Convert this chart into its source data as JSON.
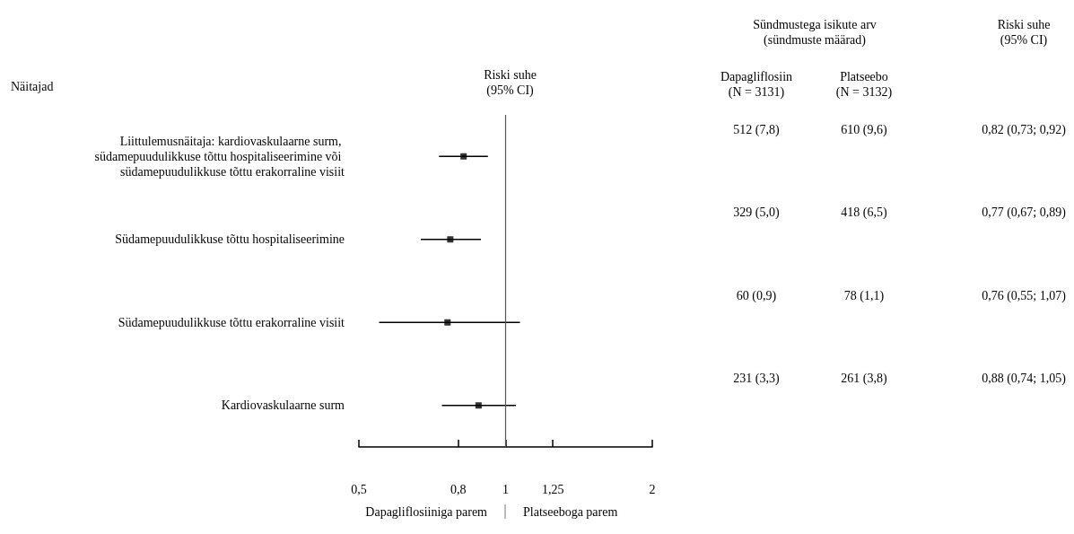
{
  "chart_data": {
    "type": "scatter",
    "orientation": "horizontal",
    "title": "Riski suhe\n(95% CI)",
    "categories": [
      "Liittulemusnäitaja: kardiovaskulaarne surm, südamepuudulikkuse tõttu hospitaliseerimine või südamepuudulikkuse tõttu erakorraline visiit",
      "Südamepuudulikkuse tõttu hospitaliseerimine",
      "Südamepuudulikkuse tõttu erakorraline visiit",
      "Kardiovaskulaarne surm"
    ],
    "values": [
      0.82,
      0.77,
      0.76,
      0.88
    ],
    "errors": [
      [
        0.73,
        0.92
      ],
      [
        0.67,
        0.89
      ],
      [
        0.55,
        1.07
      ],
      [
        0.74,
        1.05
      ]
    ],
    "value_labels": [
      "0,82 (0,73; 0,92)",
      "0,77 (0,67; 0,89)",
      "0,76 (0,55; 1,07)",
      "0,88 (0,74; 1,05)"
    ],
    "color": "#000000",
    "marker": "square",
    "log": "x",
    "xlim": [
      0.5,
      2
    ],
    "xticks": [
      {
        "value": 0.5,
        "label": "0,5"
      },
      {
        "value": 0.8,
        "label": "0,8"
      },
      1,
      {
        "value": 1.25,
        "label": "1,25"
      },
      2
    ],
    "ref_lines": [
      {
        "axis": "x",
        "value": 1
      }
    ],
    "annotations": [
      "Näitajad",
      "Sündmustega isikute arv\n(sündmuste määrad)",
      "Dapagliflosiin\n(N = 3131)",
      "Platseebo\n(N = 3132)",
      "Riski suhe\n(95% CI)",
      "512 (7,8)",
      "329 (5,0)",
      "60 (0,9)",
      "231 (3,3)",
      "610 (9,6)",
      "418 (6,5)",
      "78 (1,1)",
      "261 (3,8)",
      "Dapagliflosiiniga parem",
      "Platseeboga parem"
    ],
    "grid": false
  }
}
